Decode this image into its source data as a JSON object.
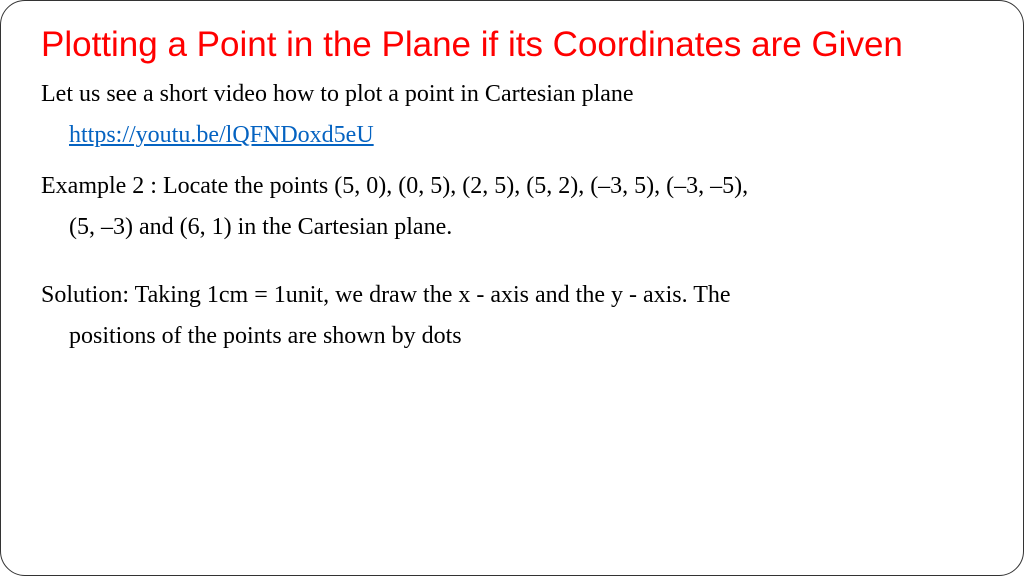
{
  "colors": {
    "title_color": "#ff0000",
    "link_color": "#0563c1",
    "body_color": "#000000",
    "border_color": "#333333",
    "background": "#ffffff"
  },
  "typography": {
    "title_font": "Arial, Helvetica, sans-serif",
    "title_fontsize": 35,
    "body_font": "Georgia, 'Times New Roman', serif",
    "body_fontsize": 24
  },
  "title": "Plotting a Point in the Plane if its Coordinates are Given",
  "intro": "Let us see a short video how to plot a point in Cartesian plane",
  "link_text": "https://youtu.be/lQFNDoxd5eU",
  "example_line1": "Example 2 : Locate the points (5, 0), (0, 5), (2, 5), (5, 2), (–3, 5), (–3, –5),",
  "example_line2": "(5, –3) and (6, 1) in the Cartesian plane.",
  "solution_line1": "Solution: Taking 1cm = 1unit, we draw the x - axis and the y - axis. The",
  "solution_line2": "positions of the points are shown by dots"
}
